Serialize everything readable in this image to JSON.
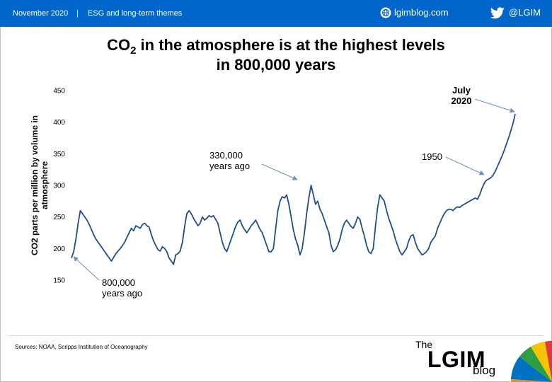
{
  "header": {
    "date": "November 2020",
    "separator": "|",
    "topic": "ESG and long-term themes",
    "site": "lgimblog.com",
    "handle": "@LGIM",
    "bg_color": "#0066cc"
  },
  "icons": {
    "site": "globe-icon",
    "social": "twitter-bird-icon"
  },
  "footer": {
    "source": "Sources: NOAA, Scripps Institution of Oceanography"
  },
  "logo": {
    "the": "The",
    "name": "LGIM",
    "blog": "blog"
  },
  "chart_data": {
    "type": "line",
    "title_line1_pre": "CO",
    "title_sub": "2",
    "title_line1_post": " in the atmosphere is at the highest levels",
    "title_line2": "in 800,000 years",
    "ylabel_line1": "CO2 parts per million by volume in",
    "ylabel_line2": "atmosphere",
    "xlabel": "",
    "ylim": [
      150,
      450
    ],
    "yticks": [
      450,
      400,
      350,
      300,
      250,
      200,
      150
    ],
    "grid": false,
    "line_color": "#1f4e8c",
    "series": [
      {
        "values": [
          185,
          195,
          215,
          240,
          260,
          255,
          250,
          245,
          238,
          230,
          222,
          215,
          210,
          205,
          200,
          195,
          190,
          185,
          180,
          186,
          192,
          196,
          200,
          205,
          210,
          218,
          225,
          232,
          228,
          236,
          234,
          232,
          238,
          240,
          236,
          234,
          222,
          212,
          205,
          198,
          196,
          203,
          200,
          195,
          185,
          180,
          175,
          190,
          192,
          196,
          210,
          235,
          255,
          260,
          255,
          248,
          242,
          236,
          240,
          250,
          245,
          248,
          252,
          250,
          252,
          246,
          240,
          225,
          210,
          200,
          195,
          205,
          215,
          225,
          235,
          242,
          245,
          236,
          230,
          225,
          230,
          236,
          240,
          245,
          238,
          230,
          225,
          215,
          205,
          195,
          195,
          200,
          230,
          260,
          275,
          282,
          280,
          285,
          270,
          250,
          230,
          215,
          205,
          190,
          200,
          225,
          255,
          280,
          300,
          285,
          270,
          275,
          262,
          255,
          245,
          235,
          225,
          205,
          195,
          198,
          205,
          215,
          230,
          240,
          245,
          240,
          235,
          232,
          240,
          250,
          246,
          232,
          220,
          205,
          195,
          192,
          200,
          235,
          265,
          285,
          280,
          275,
          260,
          248,
          238,
          228,
          215,
          205,
          195,
          190,
          195,
          200,
          212,
          220,
          222,
          210,
          200,
          195,
          190,
          192,
          195,
          200,
          210,
          215,
          220,
          232,
          240,
          248,
          255,
          260,
          262,
          262,
          260,
          264,
          266,
          265,
          268,
          270,
          272,
          274,
          276,
          278,
          280,
          278,
          285,
          295,
          303,
          308,
          310,
          312,
          316,
          322,
          330,
          338,
          346,
          355,
          365,
          375,
          386,
          398,
          413
        ]
      }
    ],
    "annotations": [
      {
        "text_line1": "800,000",
        "text_line2": "years ago"
      },
      {
        "text_line1": "330,000",
        "text_line2": "years ago"
      },
      {
        "text_line1": "1950",
        "text_line2": ""
      },
      {
        "text_line1": "July",
        "text_line2": "2020"
      }
    ]
  }
}
